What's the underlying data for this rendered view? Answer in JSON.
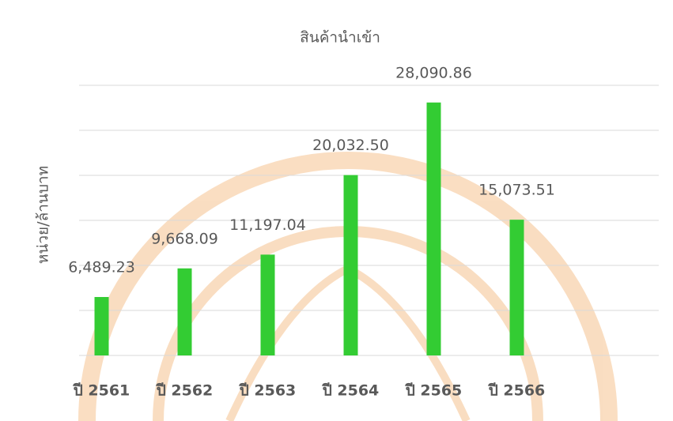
{
  "chart_data": {
    "type": "bar",
    "title": "สินค้านำเข้า",
    "y_label": "หน่วย/ล้านบาท",
    "categories": [
      "ปี 2561",
      "ปี 2562",
      "ปี 2563",
      "ปี 2564",
      "ปี 2565",
      "ปี 2566"
    ],
    "values": [
      6489.23,
      9668.09,
      11197.04,
      20032.5,
      28090.86,
      15073.51
    ],
    "value_labels": [
      "6,489.23",
      "9,668.09",
      "11,197.04",
      "20,032.50",
      "28,090.86",
      "15,073.51"
    ],
    "color": "#33cc33",
    "ylim": [
      0,
      30000
    ],
    "yticks": [
      0,
      5000,
      10000,
      15000,
      20000,
      25000,
      30000
    ],
    "grid": true
  }
}
